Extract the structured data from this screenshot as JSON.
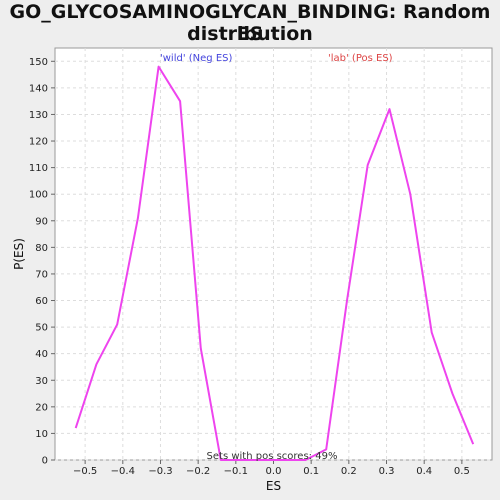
{
  "chart_data": {
    "type": "line",
    "title_line1": "GO_GLYCOSAMINOGLYCAN_BINDING: Random ES",
    "title_line2": "distribution",
    "xlabel": "ES",
    "ylabel": "P(ES)",
    "xlim": [
      -0.58,
      0.58
    ],
    "ylim": [
      0,
      155
    ],
    "x_ticks": [
      -0.5,
      -0.4,
      -0.3,
      -0.2,
      -0.1,
      0.0,
      0.1,
      0.2,
      0.3,
      0.4,
      0.5
    ],
    "x_tick_labels": [
      "−0.5",
      "−0.4",
      "−0.3",
      "−0.2",
      "−0.1",
      "0.0",
      "0.1",
      "0.2",
      "0.3",
      "0.4",
      "0.5"
    ],
    "y_ticks": [
      0,
      10,
      20,
      30,
      40,
      50,
      60,
      70,
      80,
      90,
      100,
      110,
      120,
      130,
      140,
      150
    ],
    "grid": true,
    "series": [
      {
        "color": "#ee44ee",
        "points": [
          [
            -0.525,
            12
          ],
          [
            -0.47,
            36
          ],
          [
            -0.415,
            51
          ],
          [
            -0.36,
            91
          ],
          [
            -0.305,
            148
          ],
          [
            -0.248,
            135
          ],
          [
            -0.193,
            42
          ],
          [
            -0.14,
            0
          ],
          [
            -0.085,
            0
          ],
          [
            -0.03,
            0
          ],
          [
            0.03,
            0
          ],
          [
            0.085,
            0
          ],
          [
            0.14,
            4
          ],
          [
            0.195,
            60
          ],
          [
            0.25,
            111
          ],
          [
            0.308,
            132
          ],
          [
            0.363,
            100
          ],
          [
            0.42,
            48
          ],
          [
            0.475,
            25
          ],
          [
            0.53,
            6
          ]
        ]
      }
    ],
    "annotations": {
      "neg_label": "'wild' (Neg ES)",
      "neg_color": "#4444dd",
      "pos_label": "'lab' (Pos ES)",
      "pos_color": "#dd4444",
      "sets_text": "Sets with pos scores: 49%"
    }
  }
}
